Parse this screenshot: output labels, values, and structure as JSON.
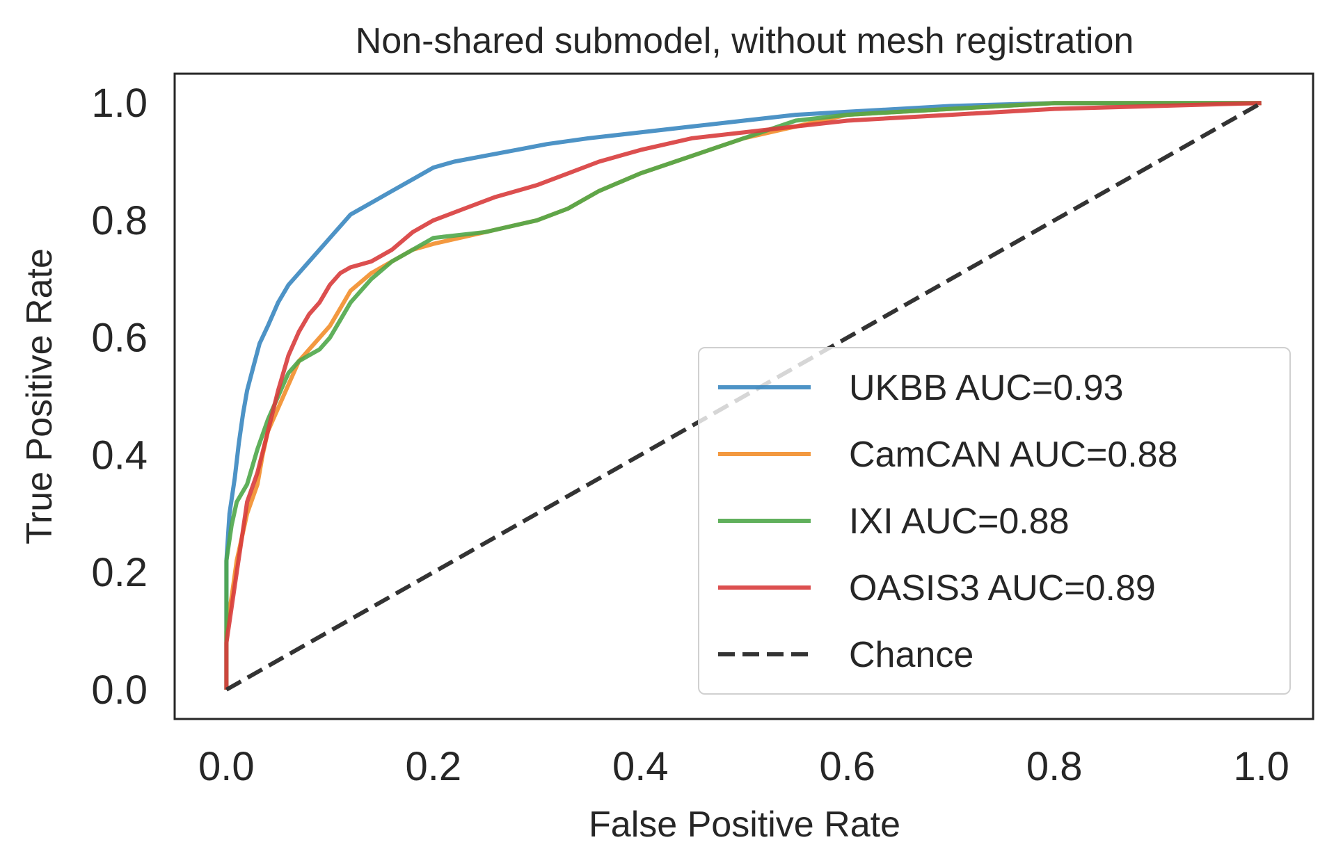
{
  "chart_data": {
    "type": "line",
    "title": "Non-shared submodel, without mesh registration",
    "xlabel": "False Positive Rate",
    "ylabel": "True Positive Rate",
    "xlim": [
      -0.05,
      1.05
    ],
    "ylim": [
      -0.05,
      1.05
    ],
    "xticks": [
      0.0,
      0.2,
      0.4,
      0.6,
      0.8,
      1.0
    ],
    "yticks": [
      0.0,
      0.2,
      0.4,
      0.6,
      0.8,
      1.0
    ],
    "tick_labels": [
      "0.0",
      "0.2",
      "0.4",
      "0.6",
      "0.8",
      "1.0"
    ],
    "grid": false,
    "legend_position": "lower-right",
    "series": [
      {
        "name": "UKBB AUC=0.93",
        "color": "#3a87c0",
        "style": "solid",
        "points": [
          [
            0,
            0
          ],
          [
            0,
            0.22
          ],
          [
            0.003,
            0.3
          ],
          [
            0.008,
            0.36
          ],
          [
            0.012,
            0.42
          ],
          [
            0.016,
            0.47
          ],
          [
            0.02,
            0.51
          ],
          [
            0.026,
            0.55
          ],
          [
            0.032,
            0.59
          ],
          [
            0.04,
            0.62
          ],
          [
            0.05,
            0.66
          ],
          [
            0.06,
            0.69
          ],
          [
            0.07,
            0.71
          ],
          [
            0.08,
            0.73
          ],
          [
            0.09,
            0.75
          ],
          [
            0.1,
            0.77
          ],
          [
            0.11,
            0.79
          ],
          [
            0.12,
            0.81
          ],
          [
            0.14,
            0.83
          ],
          [
            0.16,
            0.85
          ],
          [
            0.18,
            0.87
          ],
          [
            0.2,
            0.89
          ],
          [
            0.22,
            0.9
          ],
          [
            0.25,
            0.91
          ],
          [
            0.28,
            0.92
          ],
          [
            0.31,
            0.93
          ],
          [
            0.35,
            0.94
          ],
          [
            0.4,
            0.95
          ],
          [
            0.45,
            0.96
          ],
          [
            0.5,
            0.97
          ],
          [
            0.55,
            0.98
          ],
          [
            0.6,
            0.985
          ],
          [
            0.65,
            0.99
          ],
          [
            0.7,
            0.995
          ],
          [
            0.8,
            1.0
          ],
          [
            1.0,
            1.0
          ]
        ]
      },
      {
        "name": "CamCAN AUC=0.88",
        "color": "#f28e2b",
        "style": "solid",
        "points": [
          [
            0,
            0
          ],
          [
            0,
            0.1
          ],
          [
            0.006,
            0.17
          ],
          [
            0.01,
            0.22
          ],
          [
            0.015,
            0.26
          ],
          [
            0.02,
            0.3
          ],
          [
            0.03,
            0.35
          ],
          [
            0.035,
            0.4
          ],
          [
            0.04,
            0.44
          ],
          [
            0.05,
            0.48
          ],
          [
            0.06,
            0.52
          ],
          [
            0.07,
            0.56
          ],
          [
            0.08,
            0.58
          ],
          [
            0.09,
            0.6
          ],
          [
            0.1,
            0.62
          ],
          [
            0.11,
            0.65
          ],
          [
            0.12,
            0.68
          ],
          [
            0.14,
            0.71
          ],
          [
            0.16,
            0.73
          ],
          [
            0.18,
            0.75
          ],
          [
            0.2,
            0.76
          ],
          [
            0.25,
            0.78
          ],
          [
            0.3,
            0.8
          ],
          [
            0.33,
            0.82
          ],
          [
            0.36,
            0.85
          ],
          [
            0.4,
            0.88
          ],
          [
            0.45,
            0.91
          ],
          [
            0.5,
            0.94
          ],
          [
            0.55,
            0.96
          ],
          [
            0.6,
            0.98
          ],
          [
            0.7,
            0.99
          ],
          [
            0.8,
            1.0
          ],
          [
            1.0,
            1.0
          ]
        ]
      },
      {
        "name": "IXI AUC=0.88",
        "color": "#4fa74a",
        "style": "solid",
        "points": [
          [
            0,
            0
          ],
          [
            0,
            0.22
          ],
          [
            0.005,
            0.28
          ],
          [
            0.01,
            0.32
          ],
          [
            0.02,
            0.35
          ],
          [
            0.03,
            0.41
          ],
          [
            0.04,
            0.46
          ],
          [
            0.05,
            0.5
          ],
          [
            0.06,
            0.54
          ],
          [
            0.07,
            0.56
          ],
          [
            0.08,
            0.57
          ],
          [
            0.09,
            0.58
          ],
          [
            0.1,
            0.6
          ],
          [
            0.11,
            0.63
          ],
          [
            0.12,
            0.66
          ],
          [
            0.14,
            0.7
          ],
          [
            0.16,
            0.73
          ],
          [
            0.18,
            0.75
          ],
          [
            0.2,
            0.77
          ],
          [
            0.25,
            0.78
          ],
          [
            0.3,
            0.8
          ],
          [
            0.33,
            0.82
          ],
          [
            0.36,
            0.85
          ],
          [
            0.4,
            0.88
          ],
          [
            0.45,
            0.91
          ],
          [
            0.5,
            0.94
          ],
          [
            0.55,
            0.97
          ],
          [
            0.6,
            0.98
          ],
          [
            0.7,
            0.99
          ],
          [
            0.8,
            1.0
          ],
          [
            1.0,
            1.0
          ]
        ]
      },
      {
        "name": "OASIS3 AUC=0.89",
        "color": "#d83c3c",
        "style": "solid",
        "points": [
          [
            0,
            0
          ],
          [
            0,
            0.08
          ],
          [
            0.005,
            0.14
          ],
          [
            0.01,
            0.2
          ],
          [
            0.015,
            0.26
          ],
          [
            0.02,
            0.32
          ],
          [
            0.03,
            0.37
          ],
          [
            0.04,
            0.44
          ],
          [
            0.05,
            0.51
          ],
          [
            0.06,
            0.57
          ],
          [
            0.07,
            0.61
          ],
          [
            0.08,
            0.64
          ],
          [
            0.09,
            0.66
          ],
          [
            0.1,
            0.69
          ],
          [
            0.11,
            0.71
          ],
          [
            0.12,
            0.72
          ],
          [
            0.14,
            0.73
          ],
          [
            0.16,
            0.75
          ],
          [
            0.18,
            0.78
          ],
          [
            0.2,
            0.8
          ],
          [
            0.23,
            0.82
          ],
          [
            0.26,
            0.84
          ],
          [
            0.3,
            0.86
          ],
          [
            0.33,
            0.88
          ],
          [
            0.36,
            0.9
          ],
          [
            0.4,
            0.92
          ],
          [
            0.45,
            0.94
          ],
          [
            0.5,
            0.95
          ],
          [
            0.55,
            0.96
          ],
          [
            0.6,
            0.97
          ],
          [
            0.65,
            0.975
          ],
          [
            0.7,
            0.98
          ],
          [
            0.8,
            0.99
          ],
          [
            0.9,
            0.995
          ],
          [
            1.0,
            1.0
          ]
        ]
      },
      {
        "name": "Chance",
        "color": "#333333",
        "style": "dashed",
        "points": [
          [
            0,
            0
          ],
          [
            1,
            1
          ]
        ]
      }
    ]
  }
}
